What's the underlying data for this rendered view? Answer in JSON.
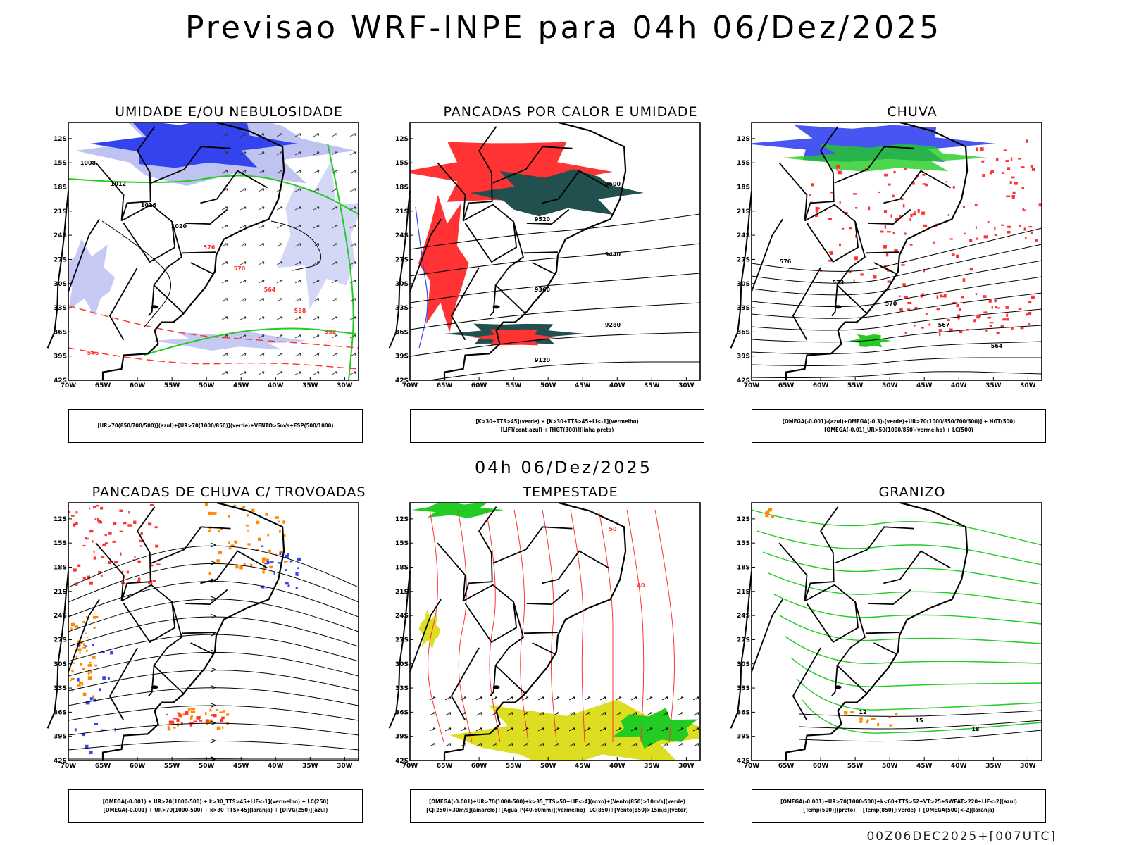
{
  "main_title": "Previsao WRF-INPE  para 04h 06/Dez/2025",
  "mid_time": "04h 06/Dez/2025",
  "footer": "00Z06DEC2025+[007UTC]",
  "colors": {
    "blue": "#3344ee",
    "light_blue": "#b8bcf0",
    "green": "#22cc22",
    "red": "#ff3333",
    "dark_teal": "#22504e",
    "orange": "#ff8800",
    "yellow": "#dddd22",
    "black": "#000000"
  },
  "axes": {
    "lat_labels": [
      "12S",
      "15S",
      "18S",
      "21S",
      "24S",
      "27S",
      "30S",
      "33S",
      "36S",
      "39S",
      "42S"
    ],
    "lon_labels": [
      "70W",
      "65W",
      "60W",
      "55W",
      "50W",
      "45W",
      "40W",
      "35W",
      "30W"
    ],
    "lat_range": [
      -42,
      -10
    ],
    "lon_range": [
      -70,
      -28
    ]
  },
  "panels": [
    {
      "title": "UMIDADE E/OU NEBULOSIDADE",
      "legend_lines": [
        "[UR>70(850/700/500)](azul)+[UR>70(1000/850)](verde)+VENTO>5m/s+ESP(500/1000)"
      ],
      "contour_labels": [
        "1008",
        "1012",
        "1016",
        "1020",
        "576",
        "570",
        "564",
        "558",
        "552",
        "546"
      ]
    },
    {
      "title": "PANCADAS POR CALOR E UMIDADE",
      "legend_lines": [
        "[K>30+TTS>45](verde)  +  [K>30+TTS>45+LI<-1](vermelho)",
        "[LIF](cont.azul)  +  [HGT(300)](linha preta)"
      ],
      "contour_labels": [
        "9600",
        "9520",
        "9440",
        "9360",
        "9280",
        "9120"
      ]
    },
    {
      "title": "CHUVA",
      "legend_lines": [
        "[OMEGA(-0.001)-(azul)+OMEGA(-0.3)-(verde)+UR>70(1000/850/700/500)]  +  HGT(500)",
        "[OMEGA(-0.01)_UR>50(1000/850)(vermelho)  +  LC(500)"
      ],
      "contour_labels": [
        "576",
        "573",
        "570",
        "567",
        "564"
      ]
    },
    {
      "title": "PANCADAS DE CHUVA C/ TROVOADAS",
      "legend_lines": [
        "[OMEGA(-0.001)  +  UR>70(1000-500)  +  k>30_TTS>45+LIF<-1](vermelho)  +  LC(250)",
        "[OMEGA(-0.001)  +  UR>70(1000-500)  +  k>30_TTS>45](laranja)  +  [DIVG(250)](azul)"
      ],
      "contour_labels": []
    },
    {
      "title": "TEMPESTADE",
      "legend_lines": [
        "[OMEGA(-0.001)+UR>70(1000-500)+k>35_TTS>50+LIF<-4](roxo)+[Vento(850)>10m/s](verde)",
        "[CJ(250)>30m/s](amarelo)+[Agua_P(40-60mm)](vermelho)+LC(850)+[Vento(850)>15m/s](vetor)"
      ],
      "contour_labels": [
        "50",
        "40"
      ]
    },
    {
      "title": "GRANIZO",
      "legend_lines": [
        "[OMEGA(-0.001)+UR>70(1000-500)+k<60+TTS>52+VT>25+SWEAT>220+LIF<-2](azul)",
        "[Temp(500)](preto)  +  [Temp(850)](verde)  +  [OMEGA(500)<-2](laranja)"
      ],
      "contour_labels": [
        "12",
        "15",
        "18"
      ]
    }
  ]
}
